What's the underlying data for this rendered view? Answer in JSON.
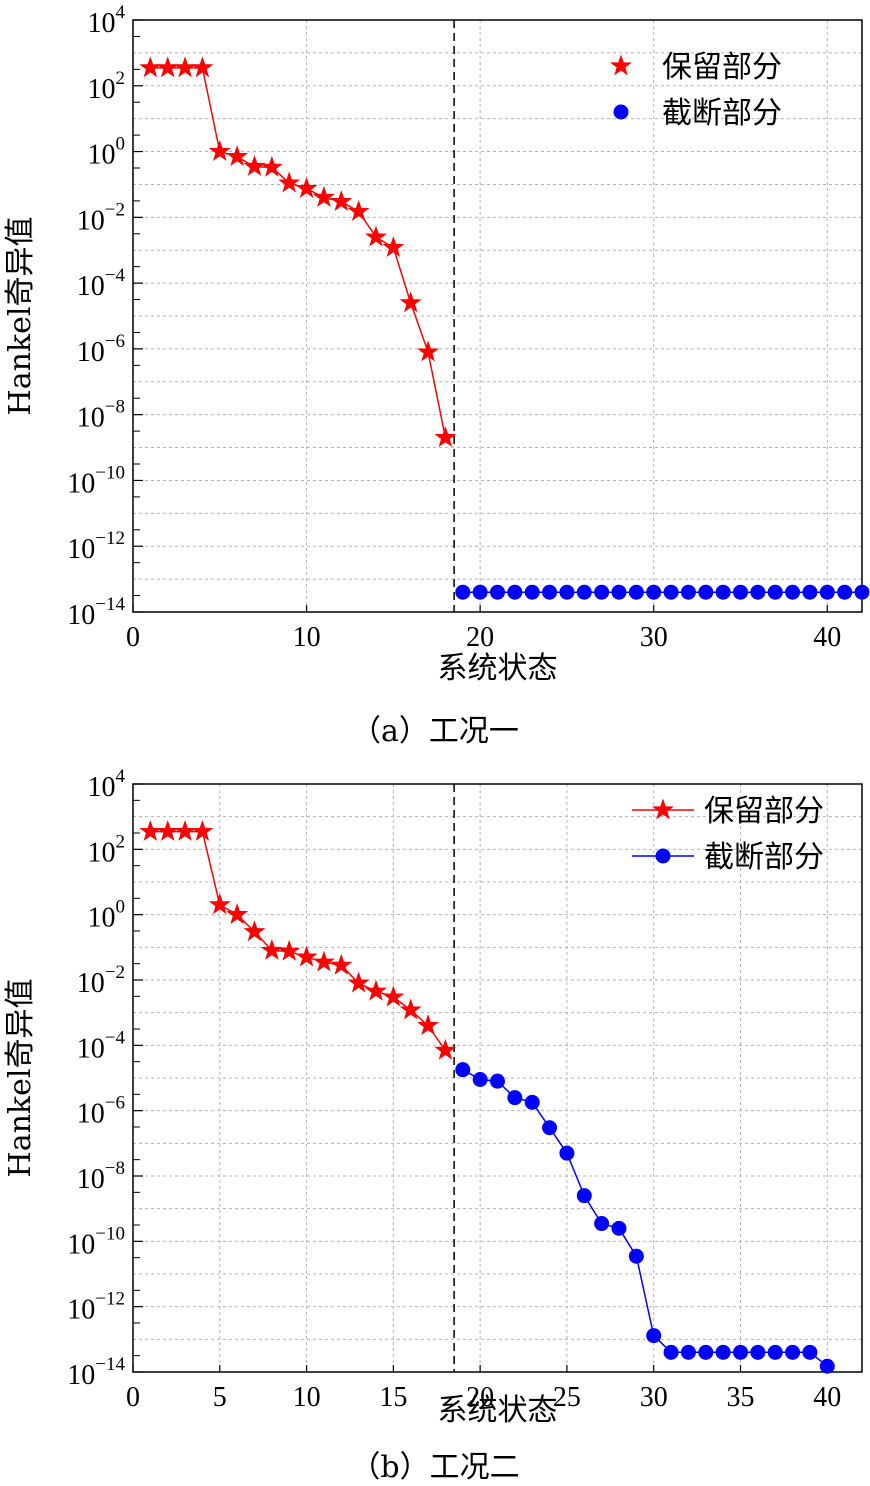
{
  "figure": {
    "caption_a": "（a）工况一",
    "caption_b": "（b）工况二"
  },
  "chart_data": [
    {
      "type": "line",
      "panel": "a",
      "xlabel": "系统状态",
      "ylabel": "Hankel奇异值",
      "y_scale": "log",
      "xlim": [
        0,
        42
      ],
      "ylim": [
        1e-14,
        10000.0
      ],
      "x_ticks": [
        0,
        10,
        20,
        30,
        40
      ],
      "y_ticks": [
        {
          "value": 1e-14,
          "base": "10",
          "exp": "−14"
        },
        {
          "value": 1e-12,
          "base": "10",
          "exp": "−12"
        },
        {
          "value": 1e-10,
          "base": "10",
          "exp": "−10"
        },
        {
          "value": 1e-08,
          "base": "10",
          "exp": "−8"
        },
        {
          "value": 1e-06,
          "base": "10",
          "exp": "−6"
        },
        {
          "value": 0.0001,
          "base": "10",
          "exp": "−4"
        },
        {
          "value": 0.01,
          "base": "10",
          "exp": "−2"
        },
        {
          "value": 1,
          "base": "10",
          "exp": "0"
        },
        {
          "value": 100,
          "base": "10",
          "exp": "2"
        },
        {
          "value": 10000,
          "base": "10",
          "exp": "4"
        }
      ],
      "grid": true,
      "legend_position": "top-right",
      "cutoff_x": 18.5,
      "series": [
        {
          "name": "保留部分",
          "color": "#ff0000",
          "marker": "star",
          "line": false,
          "x": [
            1,
            2,
            3,
            4,
            5,
            6,
            7,
            8,
            9,
            10,
            11,
            12,
            13,
            14,
            15,
            16,
            17,
            18
          ],
          "y": [
            350,
            350,
            350,
            350,
            1.0,
            0.7,
            0.35,
            0.33,
            0.11,
            0.075,
            0.04,
            0.03,
            0.015,
            0.0025,
            0.0012,
            2.5e-05,
            8e-07,
            2e-09
          ]
        },
        {
          "name": "截断部分",
          "color": "#0000ff",
          "marker": "circle",
          "line": false,
          "x": [
            19,
            20,
            21,
            22,
            23,
            24,
            25,
            26,
            27,
            28,
            29,
            30,
            31,
            32,
            33,
            34,
            35,
            36,
            37,
            38,
            39,
            40,
            41,
            42
          ],
          "y": [
            4e-14,
            4e-14,
            4e-14,
            4e-14,
            4e-14,
            4e-14,
            4e-14,
            4e-14,
            4e-14,
            4e-14,
            4e-14,
            4e-14,
            4e-14,
            4e-14,
            4e-14,
            4e-14,
            4e-14,
            4e-14,
            4e-14,
            4e-14,
            4e-14,
            4e-14,
            4e-14,
            4e-14
          ]
        }
      ]
    },
    {
      "type": "line",
      "panel": "b",
      "xlabel": "系统状态",
      "ylabel": "Hankel奇异值",
      "y_scale": "log",
      "xlim": [
        0,
        42
      ],
      "ylim": [
        1e-14,
        10000.0
      ],
      "x_ticks": [
        0,
        5,
        10,
        15,
        20,
        25,
        30,
        35,
        40
      ],
      "y_ticks": [
        {
          "value": 1e-14,
          "base": "10",
          "exp": "−14"
        },
        {
          "value": 1e-12,
          "base": "10",
          "exp": "−12"
        },
        {
          "value": 1e-10,
          "base": "10",
          "exp": "−10"
        },
        {
          "value": 1e-08,
          "base": "10",
          "exp": "−8"
        },
        {
          "value": 1e-06,
          "base": "10",
          "exp": "−6"
        },
        {
          "value": 0.0001,
          "base": "10",
          "exp": "−4"
        },
        {
          "value": 0.01,
          "base": "10",
          "exp": "−2"
        },
        {
          "value": 1,
          "base": "10",
          "exp": "0"
        },
        {
          "value": 100,
          "base": "10",
          "exp": "2"
        },
        {
          "value": 10000,
          "base": "10",
          "exp": "4"
        }
      ],
      "grid": true,
      "legend_position": "top-right",
      "cutoff_x": 18.5,
      "series": [
        {
          "name": "保留部分",
          "color": "#ff0000",
          "marker": "star",
          "line": true,
          "x": [
            1,
            2,
            3,
            4,
            5,
            6,
            7,
            8,
            9,
            10,
            11,
            12,
            13,
            14,
            15,
            16,
            17,
            18
          ],
          "y": [
            350,
            350,
            350,
            350,
            2.0,
            1.0,
            0.3,
            0.08,
            0.075,
            0.05,
            0.035,
            0.028,
            0.008,
            0.0045,
            0.003,
            0.0012,
            0.0004,
            7e-05
          ]
        },
        {
          "name": "截断部分",
          "color": "#0000ff",
          "marker": "circle",
          "line": true,
          "x": [
            19,
            20,
            21,
            22,
            23,
            24,
            25,
            26,
            27,
            28,
            29,
            30,
            31,
            32,
            33,
            34,
            35,
            36,
            37,
            38,
            39,
            40
          ],
          "y": [
            1.8e-05,
            9e-06,
            8e-06,
            2.5e-06,
            1.8e-06,
            3e-07,
            5e-08,
            2.5e-09,
            3.5e-10,
            2.5e-10,
            3.5e-11,
            1.3e-13,
            4e-14,
            4e-14,
            4e-14,
            4e-14,
            4e-14,
            4e-14,
            4e-14,
            4e-14,
            4e-14,
            1.5e-14
          ]
        }
      ]
    }
  ]
}
